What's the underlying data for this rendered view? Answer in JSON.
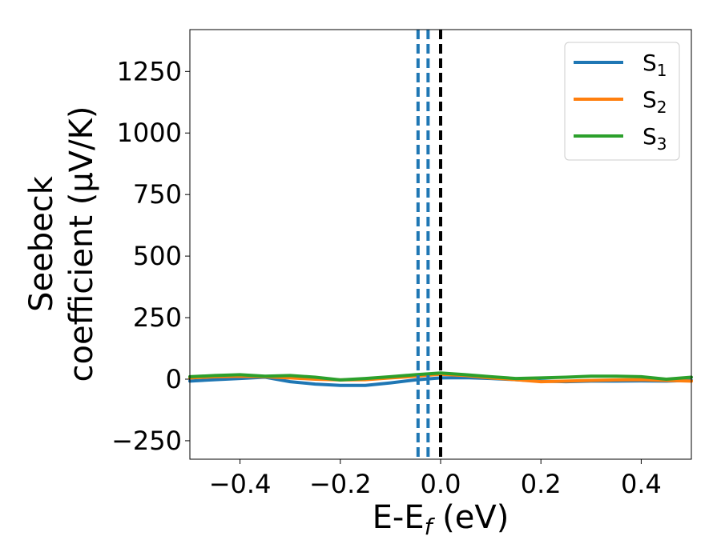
{
  "chart_data": {
    "type": "line",
    "xlabel": {
      "prefix": "E-E",
      "sub": "f",
      "suffix": " (eV)"
    },
    "ylabel": {
      "line1": "Seebeck",
      "line2": "coefficient  (μV/K)"
    },
    "xlim": [
      -0.5,
      0.5
    ],
    "ylim": [
      -325,
      1420
    ],
    "xticks": [
      -0.4,
      -0.2,
      0.0,
      0.2,
      0.4
    ],
    "xtick_labels": [
      "−0.4",
      "−0.2",
      "0.0",
      "0.2",
      "0.4"
    ],
    "yticks": [
      -250,
      0,
      250,
      500,
      750,
      1000,
      1250
    ],
    "ytick_labels": [
      "−250",
      "0",
      "250",
      "500",
      "750",
      "1000",
      "1250"
    ],
    "grid": false,
    "legend_position": "top-right",
    "series": [
      {
        "name": "S",
        "sub": "1",
        "color": "#1f77b4",
        "x": [
          -0.5,
          -0.45,
          -0.4,
          -0.35,
          -0.3,
          -0.25,
          -0.2,
          -0.15,
          -0.1,
          -0.05,
          0.0,
          0.05,
          0.1,
          0.15,
          0.2,
          0.25,
          0.3,
          0.35,
          0.4,
          0.45,
          0.5
        ],
        "y": [
          -8,
          -2,
          3,
          8,
          -10,
          -20,
          -25,
          -25,
          -15,
          -3,
          5,
          6,
          3,
          -2,
          -8,
          -10,
          -8,
          -8,
          -7,
          -8,
          -5
        ]
      },
      {
        "name": "S",
        "sub": "2",
        "color": "#ff7f0e",
        "x": [
          -0.5,
          -0.45,
          -0.4,
          -0.35,
          -0.3,
          -0.25,
          -0.2,
          -0.15,
          -0.1,
          -0.05,
          0.0,
          0.05,
          0.1,
          0.15,
          0.2,
          0.25,
          0.3,
          0.35,
          0.4,
          0.45,
          0.5
        ],
        "y": [
          5,
          10,
          12,
          10,
          5,
          0,
          -3,
          -2,
          5,
          12,
          20,
          15,
          5,
          -2,
          -10,
          -8,
          -5,
          -3,
          -2,
          -5,
          -8
        ]
      },
      {
        "name": "S",
        "sub": "3",
        "color": "#2ca02c",
        "x": [
          -0.5,
          -0.45,
          -0.4,
          -0.35,
          -0.3,
          -0.25,
          -0.2,
          -0.15,
          -0.1,
          -0.05,
          0.0,
          0.05,
          0.1,
          0.15,
          0.2,
          0.25,
          0.3,
          0.35,
          0.4,
          0.45,
          0.5
        ],
        "y": [
          10,
          15,
          18,
          12,
          15,
          8,
          -3,
          3,
          10,
          18,
          25,
          18,
          10,
          3,
          5,
          8,
          12,
          12,
          10,
          0,
          8
        ]
      }
    ],
    "vlines": [
      {
        "x": -0.045,
        "color": "#1f77b4",
        "style": "dashed"
      },
      {
        "x": -0.025,
        "color": "#1f77b4",
        "style": "dashed"
      },
      {
        "x": 0.0,
        "color": "#000000",
        "style": "dashed"
      }
    ]
  }
}
